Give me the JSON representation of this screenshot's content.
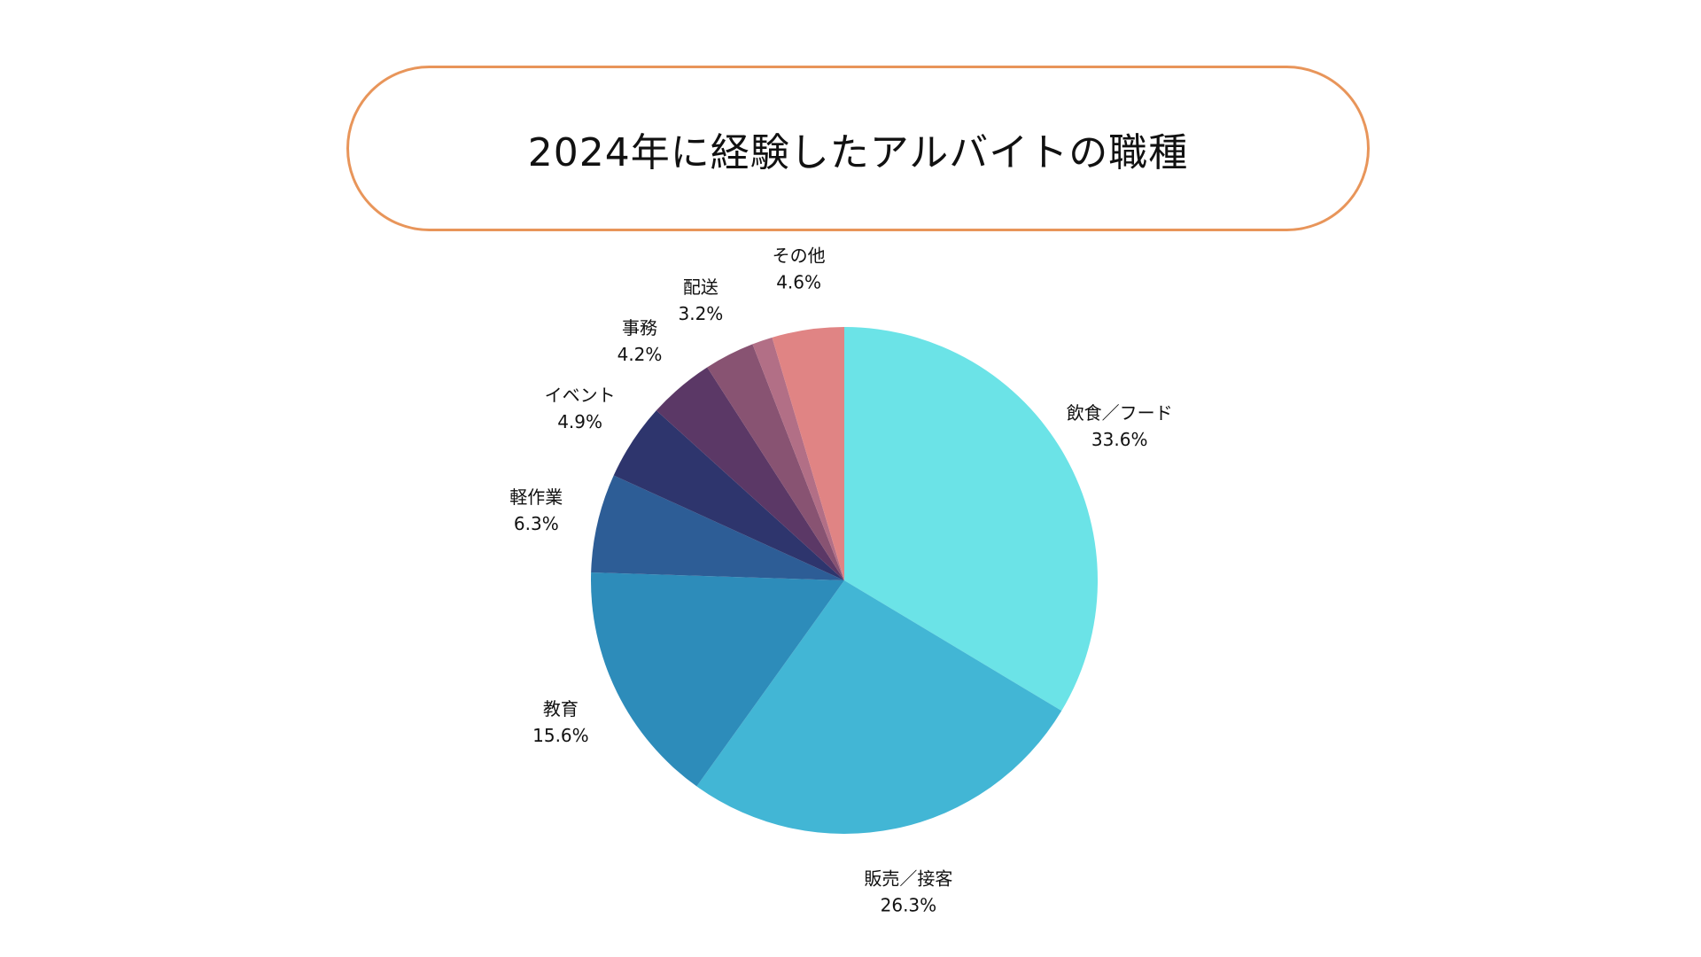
{
  "title": "2024年に経験したアルバイトの職種",
  "chart_data": {
    "type": "pie",
    "title": "2024年に経験したアルバイトの職種",
    "start_angle_deg": 0,
    "direction": "clockwise",
    "slices": [
      {
        "label": "飲食／フード",
        "value": 33.6,
        "value_label": "33.6%",
        "color": "#6be3e7"
      },
      {
        "label": "販売／接客",
        "value": 26.3,
        "value_label": "26.3%",
        "color": "#42b6d5"
      },
      {
        "label": "教育",
        "value": 15.6,
        "value_label": "15.6%",
        "color": "#2d8cba"
      },
      {
        "label": "軽作業",
        "value": 6.3,
        "value_label": "6.3%",
        "color": "#2d5d96"
      },
      {
        "label": "イベント",
        "value": 4.9,
        "value_label": "4.9%",
        "color": "#2e356d"
      },
      {
        "label": "事務",
        "value": 4.2,
        "value_label": "4.2%",
        "color": "#5b3866"
      },
      {
        "label": "配送",
        "value": 3.2,
        "value_label": "3.2%",
        "color": "#885372"
      },
      {
        "label": "",
        "value": 1.3,
        "value_label": "",
        "color": "#b26f86"
      },
      {
        "label": "その他",
        "value": 4.6,
        "value_label": "4.6%",
        "color": "#e08484"
      }
    ]
  }
}
